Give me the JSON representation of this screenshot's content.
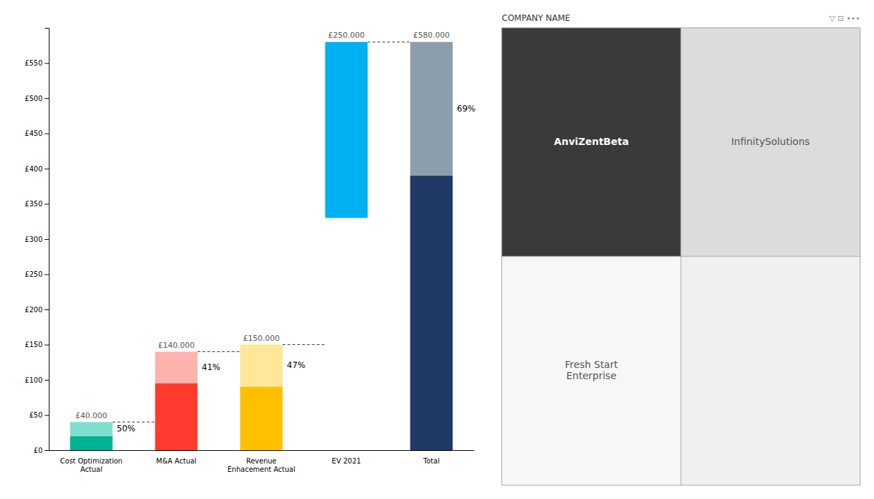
{
  "chart_data": [
    {
      "type": "bar",
      "stacked": true,
      "categories": [
        "Cost Optimization\nActual",
        "M&A Actual",
        "Revenue\nEnhacement Actual",
        "EV 2021",
        "Total"
      ],
      "series": [
        {
          "values": [
            20,
            95,
            90,
            250,
            390
          ],
          "colors": [
            "#00B294",
            "#FF3B30",
            "#FFC000",
            "#00B0F0",
            "#1F3864"
          ]
        },
        {
          "values": [
            20,
            45,
            60,
            0,
            190
          ],
          "colors": [
            "#7FDFCF",
            "#FFB3AE",
            "#FFE699",
            "#00B0F0",
            "#8C9EAC"
          ]
        }
      ],
      "bases": [
        0,
        0,
        0,
        330,
        0
      ],
      "totals": [
        40,
        140,
        150,
        250,
        580
      ],
      "value_labels": [
        "£40.000",
        "£140.000",
        "£150.000",
        "£250.000",
        "£580.000"
      ],
      "annotations": [
        "50%",
        "41%",
        "47%",
        null,
        "69%"
      ],
      "connectors": [
        40,
        140,
        150,
        580
      ],
      "ylim": [
        0,
        600
      ],
      "yticks": [
        {
          "value": 0,
          "label": "£0"
        },
        {
          "value": 50,
          "label": "£50"
        },
        {
          "value": 100,
          "label": "£100"
        },
        {
          "value": 150,
          "label": "£150"
        },
        {
          "value": 200,
          "label": "£200"
        },
        {
          "value": 250,
          "label": "£250"
        },
        {
          "value": 300,
          "label": "£300"
        },
        {
          "value": 350,
          "label": "£350"
        },
        {
          "value": 400,
          "label": "£400"
        },
        {
          "value": 450,
          "label": "£450"
        },
        {
          "value": 500,
          "label": "£500"
        },
        {
          "value": 550,
          "label": "£550"
        }
      ],
      "grid": false
    },
    {
      "type": "treemap",
      "title": "COMPANY NAME",
      "categories": [
        "AnviZentBeta",
        "InfinitySolutions",
        "Fresh Start\nEnterprise",
        null
      ],
      "colors": [
        "#3A3A3A",
        "#DCDCDC",
        "#F7F7F7",
        "#F0F0F0"
      ],
      "annotations": [
        "▽  ⊡  •••"
      ]
    }
  ]
}
